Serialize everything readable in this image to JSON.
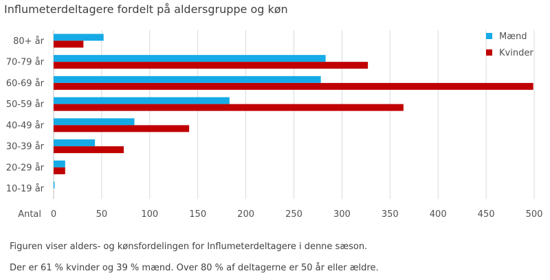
{
  "page": {
    "title": "Influmeterdeltagere fordelt på aldersgruppe og køn",
    "caption_line1": "Figuren viser alders- og kønsfordelingen for Influmeterdeltagere  i denne sæson.",
    "caption_line2": "Der er 61 % kvinder og 39 % mænd. Over 80 % af deltagerne er 50 år eller ældre."
  },
  "chart_data": {
    "type": "bar",
    "orientation": "horizontal",
    "title": "Influmeterdeltagere fordelt på aldersgruppe og køn",
    "categories": [
      "80+ år",
      "70-79 år",
      "60-69 år",
      "50-59 år",
      "40-49 år",
      "30-39 år",
      "20-29 år",
      "10-19 år"
    ],
    "series": [
      {
        "name": "Mænd",
        "color": "#16ABE6",
        "values": [
          52,
          283,
          278,
          183,
          84,
          43,
          12,
          1
        ]
      },
      {
        "name": "Kvinder",
        "color": "#C00000",
        "values": [
          31,
          327,
          499,
          364,
          141,
          73,
          12,
          0
        ]
      }
    ],
    "category_axis_label": "Antal",
    "xlim": [
      0,
      500
    ],
    "xticks": [
      0,
      50,
      100,
      150,
      200,
      250,
      300,
      350,
      400,
      450,
      500
    ],
    "grid": "vertical",
    "legend_position": "top-right"
  }
}
